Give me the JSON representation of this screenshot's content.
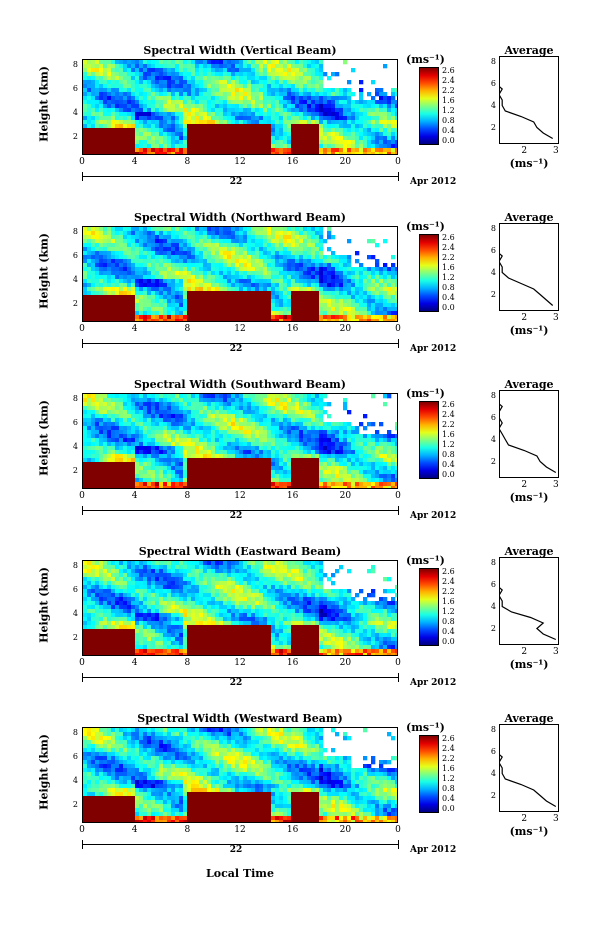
{
  "common": {
    "y_label": "Height (km)",
    "y_ticks": [
      "2",
      "4",
      "6",
      "8"
    ],
    "x_ticks": [
      "0",
      "4",
      "8",
      "12",
      "16",
      "20",
      "0"
    ],
    "day_label": "22",
    "month_label": "Apr 2012",
    "colorbar_unit": "(ms⁻¹)",
    "colorbar_ticks": [
      "2.6",
      "2.4",
      "2.2",
      "1.6",
      "1.2",
      "0.8",
      "0.4",
      "0.0"
    ],
    "avg_title": "Average",
    "avg_y_ticks": [
      "2",
      "4",
      "6",
      "8"
    ],
    "avg_unit": "(ms⁻¹)",
    "x_axis_title": "Local Time"
  },
  "panels": [
    {
      "title": "Spectral Width (Vertical Beam)",
      "avg_x_ticks": [
        "2",
        "3"
      ]
    },
    {
      "title": "Spectral Width (Northward Beam)",
      "avg_x_ticks": [
        "2",
        "3"
      ]
    },
    {
      "title": "Spectral Width (Southward Beam)",
      "avg_x_ticks": [
        "2",
        "3"
      ]
    },
    {
      "title": "Spectral Width (Eastward Beam)",
      "avg_x_ticks": [
        "2",
        "3"
      ]
    },
    {
      "title": "Spectral Width (Westward Beam)",
      "avg_x_ticks": [
        "2",
        "3"
      ]
    }
  ],
  "chart_data": [
    {
      "type": "heatmap",
      "title": "Spectral Width (Vertical Beam)",
      "xlabel": "Local Time",
      "ylabel": "Height (km)",
      "xlim": [
        0,
        24
      ],
      "ylim": [
        0.5,
        8.5
      ],
      "colorbar_range": [
        0.0,
        2.8
      ],
      "colorbar_unit": "ms-1",
      "avg_profile": {
        "title": "Average",
        "xlabel": "(ms-1)",
        "ylim": [
          0.5,
          8.5
        ],
        "height": [
          1,
          1.5,
          2,
          2.5,
          3,
          3.5,
          4,
          4.5,
          5,
          5.5,
          6,
          6.5,
          7,
          7.5,
          8
        ],
        "value": [
          2.9,
          2.6,
          2.4,
          2.3,
          1.9,
          1.4,
          1.3,
          1.3,
          1.2,
          1.3,
          1.1,
          1.2,
          1.2,
          1.1,
          1.2
        ]
      }
    },
    {
      "type": "heatmap",
      "title": "Spectral Width (Northward Beam)",
      "xlabel": "Local Time",
      "ylabel": "Height (km)",
      "xlim": [
        0,
        24
      ],
      "ylim": [
        0.5,
        8.5
      ],
      "colorbar_range": [
        0.0,
        2.8
      ],
      "colorbar_unit": "ms-1",
      "avg_profile": {
        "title": "Average",
        "xlabel": "(ms-1)",
        "ylim": [
          0.5,
          8.5
        ],
        "height": [
          1,
          1.5,
          2,
          2.5,
          3,
          3.5,
          4,
          4.5,
          5,
          5.5,
          6,
          6.5,
          7,
          7.5,
          8
        ],
        "value": [
          2.9,
          2.7,
          2.5,
          2.3,
          1.9,
          1.5,
          1.3,
          1.3,
          1.2,
          1.3,
          1.1,
          1.2,
          1.2,
          1.1,
          1.2
        ]
      }
    },
    {
      "type": "heatmap",
      "title": "Spectral Width (Southward Beam)",
      "xlabel": "Local Time",
      "ylabel": "Height (km)",
      "xlim": [
        0,
        24
      ],
      "ylim": [
        0.5,
        8.5
      ],
      "colorbar_range": [
        0.0,
        2.8
      ],
      "colorbar_unit": "ms-1",
      "avg_profile": {
        "title": "Average",
        "xlabel": "(ms-1)",
        "ylim": [
          0.5,
          8.5
        ],
        "height": [
          1,
          1.5,
          2,
          2.5,
          3,
          3.5,
          4,
          4.5,
          5,
          5.5,
          6,
          6.5,
          7,
          7.5,
          8
        ],
        "value": [
          3.0,
          2.7,
          2.5,
          2.4,
          2.0,
          1.5,
          1.4,
          1.3,
          1.2,
          1.3,
          1.2,
          1.2,
          1.3,
          1.1,
          1.2
        ]
      }
    },
    {
      "type": "heatmap",
      "title": "Spectral Width (Eastward Beam)",
      "xlabel": "Local Time",
      "ylabel": "Height (km)",
      "xlim": [
        0,
        24
      ],
      "ylim": [
        0.5,
        8.5
      ],
      "colorbar_range": [
        0.0,
        2.8
      ],
      "colorbar_unit": "ms-1",
      "avg_profile": {
        "title": "Average",
        "xlabel": "(ms-1)",
        "ylim": [
          0.5,
          8.5
        ],
        "height": [
          1,
          1.5,
          2,
          2.5,
          3,
          3.5,
          4,
          4.5,
          5,
          5.5,
          6,
          6.5,
          7,
          7.5,
          8
        ],
        "value": [
          3.0,
          2.6,
          2.4,
          2.6,
          2.2,
          1.6,
          1.3,
          1.3,
          1.2,
          1.3,
          1.1,
          1.2,
          1.2,
          1.1,
          1.2
        ]
      }
    },
    {
      "type": "heatmap",
      "title": "Spectral Width (Westward Beam)",
      "xlabel": "Local Time",
      "ylabel": "Height (km)",
      "xlim": [
        0,
        24
      ],
      "ylim": [
        0.5,
        8.5
      ],
      "colorbar_range": [
        0.0,
        2.8
      ],
      "colorbar_unit": "ms-1",
      "avg_profile": {
        "title": "Average",
        "xlabel": "(ms-1)",
        "ylim": [
          0.5,
          8.5
        ],
        "height": [
          1,
          1.5,
          2,
          2.5,
          3,
          3.5,
          4,
          4.5,
          5,
          5.5,
          6,
          6.5,
          7,
          7.5,
          8
        ],
        "value": [
          3.0,
          2.7,
          2.5,
          2.3,
          1.9,
          1.4,
          1.3,
          1.3,
          1.2,
          1.3,
          1.1,
          1.2,
          1.2,
          1.1,
          1.2
        ]
      }
    }
  ]
}
